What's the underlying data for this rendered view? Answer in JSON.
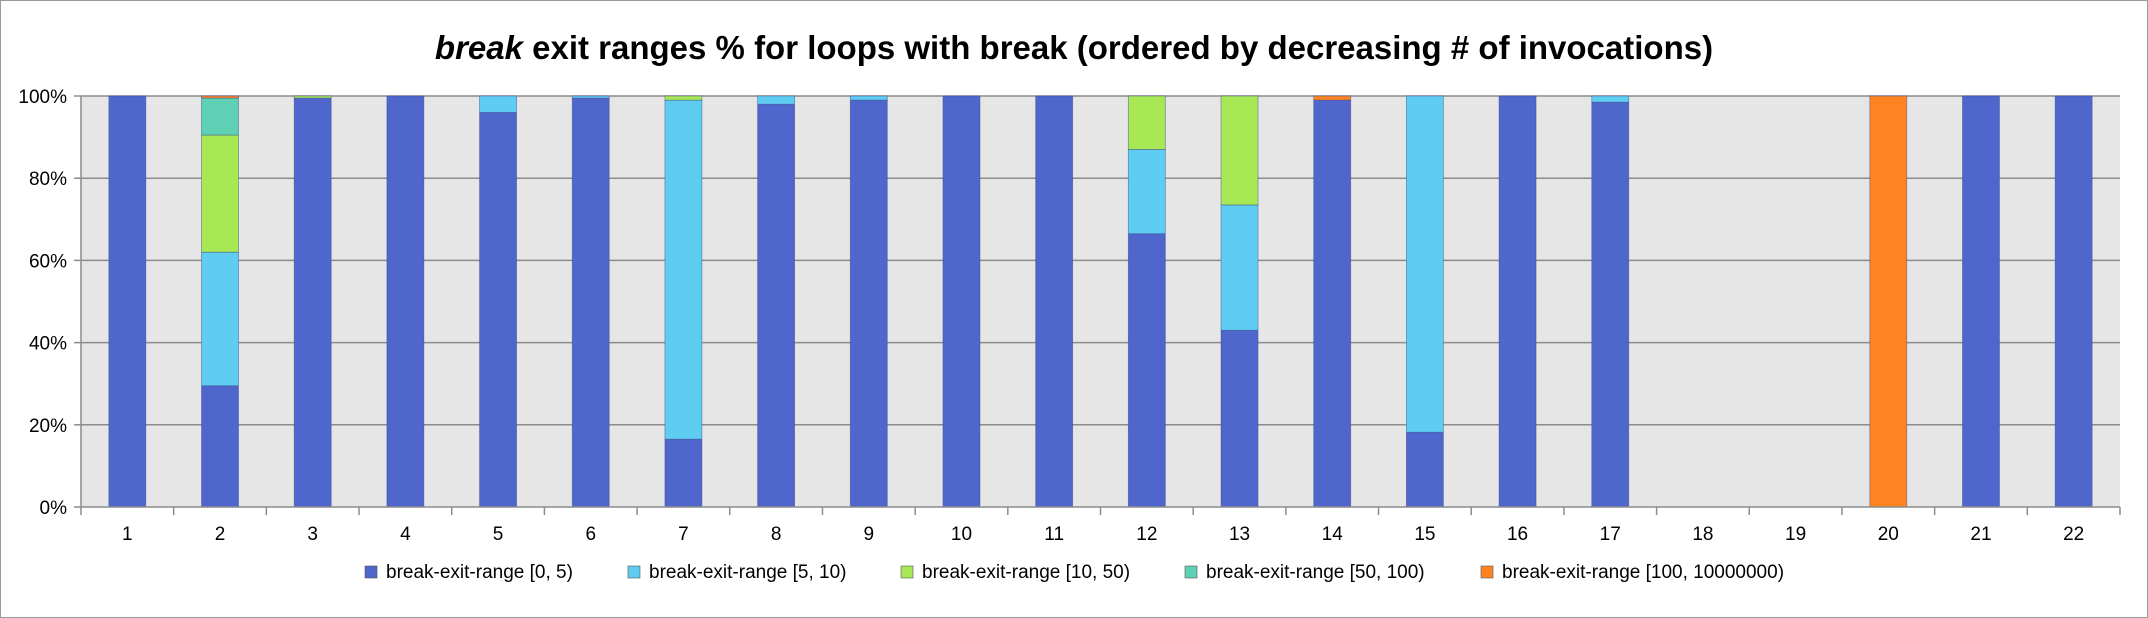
{
  "chart_data": {
    "type": "bar",
    "stacked": true,
    "normalized": true,
    "title_emphasis": "break",
    "title_rest": " exit ranges % for loops with break (ordered by decreasing # of invocations)",
    "categories": [
      "1",
      "2",
      "3",
      "4",
      "5",
      "6",
      "7",
      "8",
      "9",
      "10",
      "11",
      "12",
      "13",
      "14",
      "15",
      "16",
      "17",
      "18",
      "19",
      "20",
      "21",
      "22"
    ],
    "series": [
      {
        "name": "break-exit-range [0, 5)",
        "color": "#4F66CC",
        "values": [
          100,
          29.5,
          99.5,
          100,
          96,
          99.5,
          16.5,
          98,
          99,
          100,
          100,
          66.5,
          43,
          99,
          18.2,
          100,
          98.5,
          0,
          0,
          0,
          100,
          100
        ]
      },
      {
        "name": "break-exit-range [5, 10)",
        "color": "#5FCCF2",
        "values": [
          0,
          32.5,
          0,
          0,
          4,
          0.5,
          82.5,
          2,
          1,
          0,
          0,
          20.5,
          30.5,
          0,
          81.8,
          0,
          1.5,
          0,
          0,
          0,
          0,
          0
        ]
      },
      {
        "name": "break-exit-range [10, 50)",
        "color": "#A8E854",
        "values": [
          0,
          28.5,
          0.5,
          0,
          0,
          0,
          1,
          0,
          0,
          0,
          0,
          13,
          26.5,
          0,
          0,
          0,
          0,
          0,
          0,
          0,
          0,
          0
        ]
      },
      {
        "name": "break-exit-range [50, 100)",
        "color": "#5ED0B4",
        "values": [
          0,
          9,
          0,
          0,
          0,
          0,
          0,
          0,
          0,
          0,
          0,
          0,
          0,
          0,
          0,
          0,
          0,
          0,
          0,
          0,
          0,
          0
        ]
      },
      {
        "name": "break-exit-range [100, 10000000)",
        "color": "#FF8421",
        "values": [
          0,
          0.5,
          0,
          0,
          0,
          0,
          0,
          0,
          0,
          0,
          0,
          0,
          0,
          1,
          0,
          0,
          0,
          0,
          0,
          100,
          0,
          0
        ]
      }
    ],
    "y_ticks": [
      "0%",
      "20%",
      "40%",
      "60%",
      "80%",
      "100%"
    ],
    "ylim": [
      0,
      100
    ],
    "grid": true,
    "legend_position": "bottom"
  }
}
